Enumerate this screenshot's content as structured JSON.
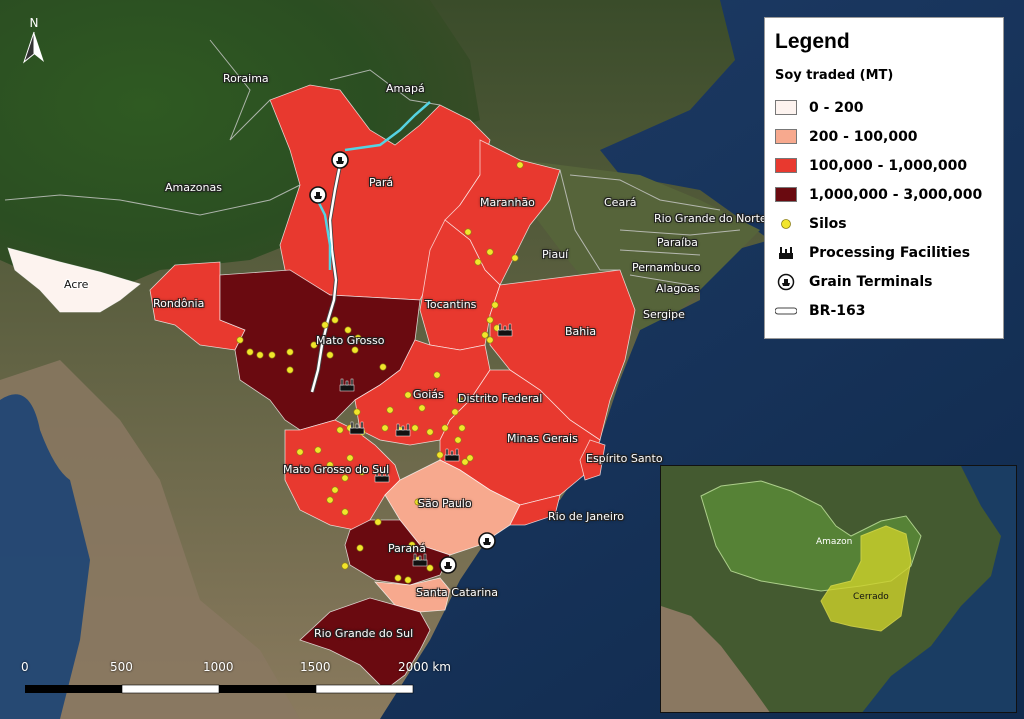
{
  "legend": {
    "title": "Legend",
    "subtitle": "Soy traded (MT)",
    "classes": [
      {
        "label": "0 - 200",
        "color": "#fdf3ef"
      },
      {
        "label": "200 - 100,000",
        "color": "#f7a98e"
      },
      {
        "label": "100,000 - 1,000,000",
        "color": "#e8392f"
      },
      {
        "label": "1,000,000 - 3,000,000",
        "color": "#6a0a10"
      }
    ],
    "silos_label": "Silos",
    "processing_label": "Processing Facilities",
    "terminals_label": "Grain Terminals",
    "road_label": "BR-163"
  },
  "north_label": "N",
  "states": {
    "roraima": "Roraima",
    "amapa": "Amapá",
    "amazonas": "Amazonas",
    "para": "Pará",
    "maranhao": "Maranhão",
    "ceara": "Ceará",
    "rio_grande_do_norte": "Rio Grande do Norte",
    "paraiba": "Paraíba",
    "piaui": "Piauí",
    "pernambuco": "Pernambuco",
    "alagoas": "Alagoas",
    "sergipe": "Sergipe",
    "acre": "Acre",
    "rondonia": "Rondônia",
    "tocantins": "Tocantins",
    "bahia": "Bahia",
    "mato_grosso": "Mato Grosso",
    "goias": "Goiás",
    "distrito_federal": "Distrito Federal",
    "minas_gerais": "Minas Gerais",
    "espirito_santo": "Espírito Santo",
    "mato_grosso_do_sul": "Mato Grosso do Sul",
    "sao_paulo": "São Paulo",
    "rio_de_janeiro": "Rio de Janeiro",
    "parana": "Paraná",
    "santa_catarina": "Santa Catarina",
    "rio_grande_do_sul": "Rio Grande do Sul"
  },
  "scale": {
    "ticks": [
      "0",
      "500",
      "1000",
      "1500",
      "2000 km"
    ]
  },
  "inset": {
    "amazon_label": "Amazon",
    "cerrado_label": "Cerrado"
  }
}
